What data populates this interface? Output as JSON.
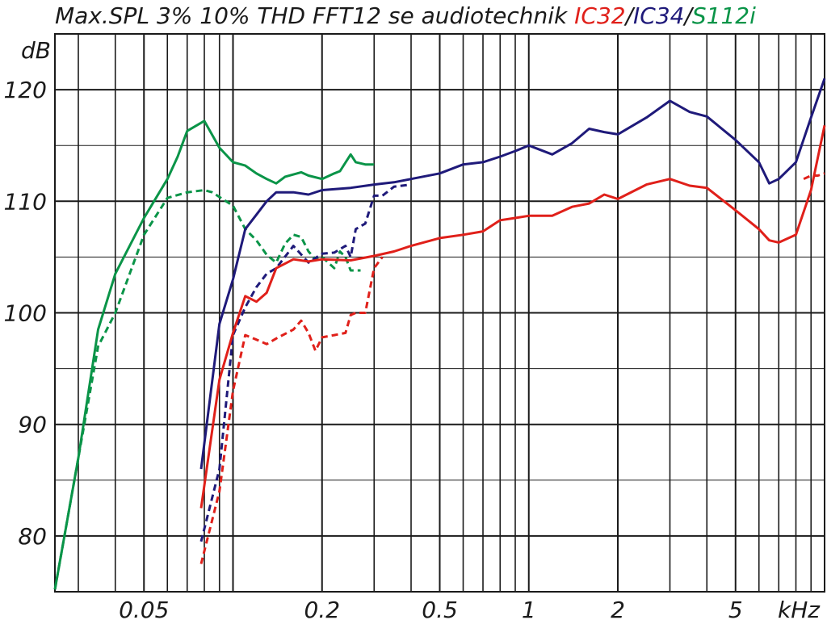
{
  "chart_data": {
    "type": "line",
    "title_prefix": "Max.SPL 3% 10% THD FFT12 se audiotechnik ",
    "title_models": [
      {
        "text": "IC32",
        "color": "#e0201a"
      },
      {
        "text": "/",
        "color": "#1a1a1a"
      },
      {
        "text": "IC34",
        "color": "#1f1a7a"
      },
      {
        "text": "/",
        "color": "#1a1a1a"
      },
      {
        "text": "S112i",
        "color": "#0a9448"
      }
    ],
    "ylabel": "dB",
    "xlabel": "kHz",
    "x_scale": "log",
    "xlim": [
      0.025,
      10
    ],
    "ylim": [
      75,
      125
    ],
    "grid": true,
    "x_tick_labels": [
      {
        "value": 0.05,
        "label": "0.05"
      },
      {
        "value": 0.2,
        "label": "0.2"
      },
      {
        "value": 0.5,
        "label": "0.5"
      },
      {
        "value": 1,
        "label": "1"
      },
      {
        "value": 2,
        "label": "2"
      },
      {
        "value": 5,
        "label": "5"
      }
    ],
    "y_tick_labels": [
      {
        "value": 120,
        "label": "120"
      },
      {
        "value": 110,
        "label": "110"
      },
      {
        "value": 100,
        "label": "100"
      },
      {
        "value": 90,
        "label": "90"
      },
      {
        "value": 80,
        "label": "80"
      }
    ],
    "series": [
      {
        "id": "s112i-3",
        "color": "#0a9448",
        "dashed": false,
        "x": [
          0.025,
          0.03,
          0.035,
          0.04,
          0.05,
          0.06,
          0.065,
          0.07,
          0.08,
          0.09,
          0.1,
          0.11,
          0.12,
          0.13,
          0.14,
          0.15,
          0.17,
          0.18,
          0.2,
          0.22,
          0.23,
          0.25,
          0.26,
          0.28,
          0.3
        ],
        "y": [
          75.2,
          87,
          98.5,
          103.5,
          108.5,
          112,
          114,
          116.3,
          117.2,
          114.8,
          113.5,
          113.2,
          112.5,
          112,
          111.6,
          112.2,
          112.6,
          112.3,
          112,
          112.5,
          112.7,
          114.2,
          113.5,
          113.3,
          113.3
        ]
      },
      {
        "id": "s112i-10",
        "color": "#0a9448",
        "dashed": true,
        "x": [
          0.025,
          0.03,
          0.035,
          0.04,
          0.05,
          0.06,
          0.07,
          0.08,
          0.085,
          0.1,
          0.11,
          0.12,
          0.13,
          0.14,
          0.15,
          0.16,
          0.17,
          0.18,
          0.19,
          0.2,
          0.21,
          0.22,
          0.23,
          0.24,
          0.25,
          0.27
        ],
        "y": [
          75.2,
          87,
          97,
          100,
          107,
          110.3,
          110.8,
          111,
          110.8,
          109.6,
          107.5,
          106.5,
          105.2,
          104.5,
          106.2,
          107,
          106.8,
          105.5,
          104.8,
          105,
          104.5,
          104,
          105.5,
          105,
          103.8,
          103.8
        ]
      },
      {
        "id": "ic34-3",
        "color": "#1f1a7a",
        "dashed": false,
        "x": [
          0.078,
          0.09,
          0.1,
          0.11,
          0.12,
          0.13,
          0.14,
          0.16,
          0.18,
          0.2,
          0.25,
          0.3,
          0.35,
          0.4,
          0.5,
          0.6,
          0.7,
          0.8,
          0.9,
          1.0,
          1.2,
          1.4,
          1.6,
          1.8,
          2.0,
          2.5,
          3.0,
          3.5,
          4.0,
          5.0,
          6.0,
          6.5,
          7.0,
          8.0,
          9.0,
          10.0
        ],
        "y": [
          86,
          99,
          103,
          107.5,
          108.8,
          110,
          110.8,
          110.8,
          110.6,
          111,
          111.2,
          111.5,
          111.7,
          112,
          112.5,
          113.3,
          113.5,
          114,
          114.5,
          115,
          114.2,
          115.2,
          116.5,
          116.2,
          116,
          117.5,
          119,
          118,
          117.6,
          115.5,
          113.5,
          111.6,
          112,
          113.5,
          117.5,
          121
        ]
      },
      {
        "id": "ic34-10",
        "color": "#1f1a7a",
        "dashed": true,
        "x": [
          0.078,
          0.09,
          0.1,
          0.11,
          0.12,
          0.13,
          0.14,
          0.16,
          0.18,
          0.2,
          0.22,
          0.24,
          0.25,
          0.26,
          0.28,
          0.3,
          0.32,
          0.35,
          0.4
        ],
        "y": [
          79.5,
          86,
          98,
          100.5,
          102.3,
          103.5,
          104,
          106,
          104.5,
          105.3,
          105.4,
          106,
          105,
          107.5,
          108,
          110.5,
          110.5,
          111.3,
          111.5
        ]
      },
      {
        "id": "ic32-3",
        "color": "#e0201a",
        "dashed": false,
        "x": [
          0.078,
          0.09,
          0.1,
          0.11,
          0.12,
          0.13,
          0.14,
          0.16,
          0.18,
          0.2,
          0.25,
          0.3,
          0.35,
          0.4,
          0.5,
          0.6,
          0.7,
          0.8,
          0.9,
          1.0,
          1.2,
          1.4,
          1.6,
          1.8,
          2.0,
          2.5,
          3.0,
          3.5,
          4.0,
          5.0,
          6.0,
          6.5,
          7.0,
          8.0,
          9.0,
          10.0
        ],
        "y": [
          82.5,
          94,
          98.2,
          101.5,
          101,
          101.8,
          104,
          104.8,
          104.6,
          104.8,
          104.7,
          105.1,
          105.5,
          106,
          106.7,
          107,
          107.3,
          108.3,
          108.5,
          108.7,
          108.7,
          109.5,
          109.8,
          110.6,
          110.2,
          111.5,
          112,
          111.4,
          111.2,
          109.2,
          107.5,
          106.5,
          106.3,
          107,
          111,
          116.8
        ]
      },
      {
        "id": "ic32-10",
        "color": "#e0201a",
        "dashed": true,
        "x": [
          0.078,
          0.09,
          0.1,
          0.11,
          0.12,
          0.13,
          0.14,
          0.16,
          0.17,
          0.18,
          0.19,
          0.2,
          0.22,
          0.24,
          0.25,
          0.26,
          0.28,
          0.3,
          0.32
        ],
        "y": [
          77.5,
          84,
          93,
          98,
          97.6,
          97.2,
          97.7,
          98.5,
          99.3,
          98.2,
          96.6,
          97.8,
          98,
          98.2,
          99.8,
          100,
          100,
          104,
          105
        ]
      },
      {
        "id": "ic32-10-tail",
        "color": "#e0201a",
        "dashed": true,
        "x": [
          8.5,
          9.0,
          9.5,
          10.0
        ],
        "y": [
          112,
          112.3,
          112.3,
          112.5
        ]
      }
    ]
  }
}
